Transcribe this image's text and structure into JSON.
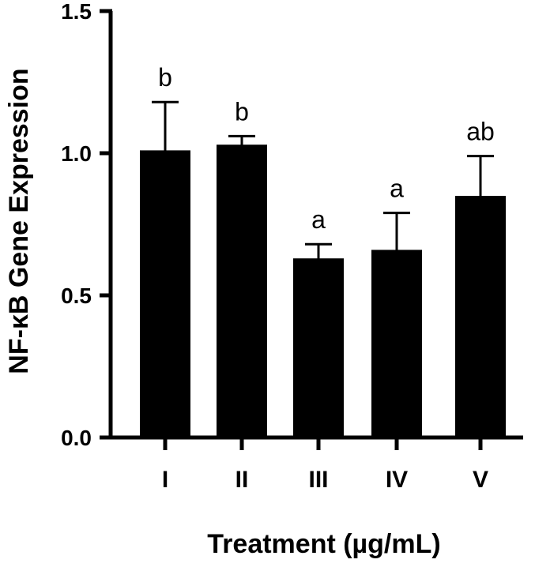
{
  "chart_data": {
    "type": "bar",
    "title": "",
    "xlabel": "Treatment (µg/mL)",
    "ylabel": "NF-κB Gene Expression",
    "ylim": [
      0,
      1.5
    ],
    "yticks": [
      "0.0",
      "0.5",
      "1.0",
      "1.5"
    ],
    "categories": [
      "I",
      "II",
      "III",
      "IV",
      "V"
    ],
    "values": [
      1.01,
      1.03,
      0.63,
      0.66,
      0.85
    ],
    "error_upper": [
      0.17,
      0.03,
      0.05,
      0.13,
      0.14
    ],
    "significance": [
      "b",
      "b",
      "a",
      "a",
      "ab"
    ],
    "grid": false,
    "legend": "none",
    "colors": {
      "bar": "#000000",
      "axis": "#000000"
    }
  }
}
